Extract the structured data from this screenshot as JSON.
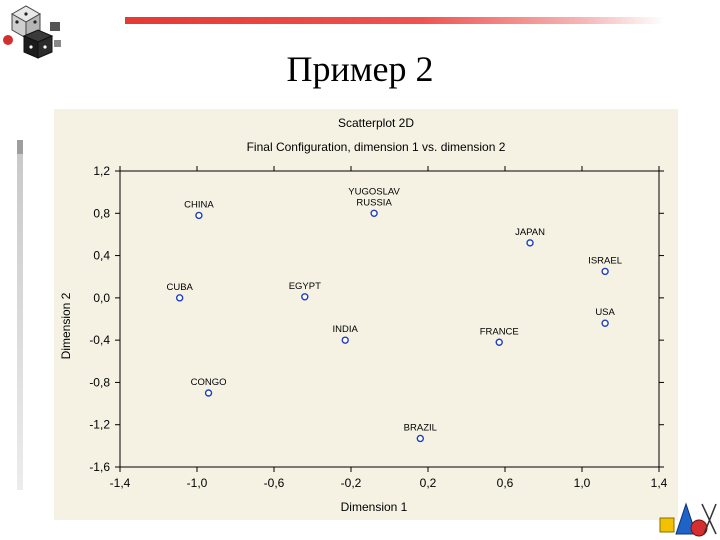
{
  "slide": {
    "title": "Пример 2"
  },
  "chart_data": {
    "type": "scatter",
    "title": "Scatterplot 2D",
    "subtitle": "Final Configuration, dimension 1 vs. dimension 2",
    "xlabel": "Dimension 1",
    "ylabel": "Dimension 2",
    "xlim": [
      -1.4,
      1.4
    ],
    "ylim": [
      -1.6,
      1.2
    ],
    "xticks": [
      -1.4,
      -1.0,
      -0.6,
      -0.2,
      0.2,
      0.6,
      1.0,
      1.4
    ],
    "yticks": [
      1.2,
      0.8,
      0.4,
      0.0,
      -0.4,
      -0.8,
      -1.2,
      -1.6
    ],
    "xtick_labels": [
      "-1,4",
      "-1,0",
      "-0,6",
      "-0,2",
      "0,2",
      "0,6",
      "1,0",
      "1,4"
    ],
    "ytick_labels": [
      "1,2",
      "0,8",
      "0,4",
      "0,0",
      "-0,4",
      "-0,8",
      "-1,2",
      "-1,6"
    ],
    "grid": false,
    "marker_color": "#1f3fbf",
    "points": [
      {
        "label": "CHINA",
        "x": -0.99,
        "y": 0.78
      },
      {
        "label": "YUGOSLAV",
        "label2": "RUSSIA",
        "x": -0.08,
        "y": 0.8
      },
      {
        "label": "JAPAN",
        "x": 0.73,
        "y": 0.52
      },
      {
        "label": "ISRAEL",
        "x": 1.12,
        "y": 0.25
      },
      {
        "label": "CUBA",
        "x": -1.09,
        "y": 0.0
      },
      {
        "label": "EGYPT",
        "x": -0.44,
        "y": 0.01
      },
      {
        "label": "USA",
        "x": 1.12,
        "y": -0.24
      },
      {
        "label": "INDIA",
        "x": -0.23,
        "y": -0.4
      },
      {
        "label": "FRANCE",
        "x": 0.57,
        "y": -0.42
      },
      {
        "label": "CONGO",
        "x": -0.94,
        "y": -0.9
      },
      {
        "label": "BRAZIL",
        "x": 0.16,
        "y": -1.33
      }
    ]
  }
}
